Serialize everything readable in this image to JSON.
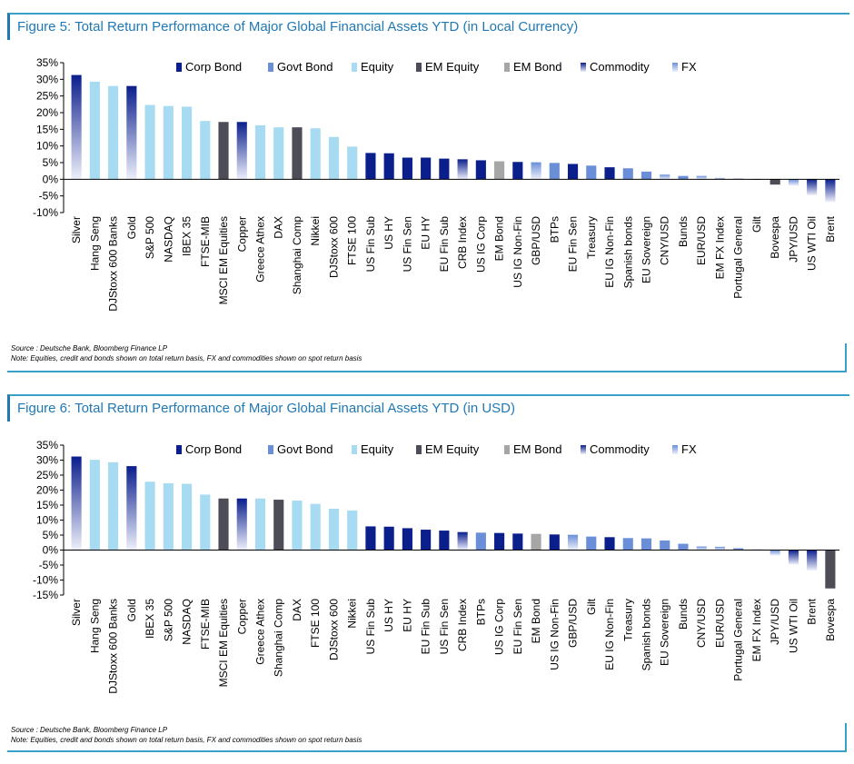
{
  "legend_items": [
    {
      "name": "Corp Bond",
      "color": "#0a1e8c",
      "fill": "solid"
    },
    {
      "name": "Govt Bond",
      "color": "#6a8fd8",
      "fill": "solid"
    },
    {
      "name": "Equity",
      "color": "#a6dbf2",
      "fill": "solid"
    },
    {
      "name": "EM Equity",
      "color": "#4d4d57",
      "fill": "solid"
    },
    {
      "name": "EM Bond",
      "color": "#a6a6a6",
      "fill": "solid"
    },
    {
      "name": "Commodity",
      "color": "#0a1e8c",
      "fill": "gradient"
    },
    {
      "name": "FX",
      "color": "#6a8fd8",
      "fill": "gradient"
    }
  ],
  "chart_data": [
    {
      "type": "bar",
      "title": "Figure 5: Total Return Performance of Major Global Financial Assets YTD (in Local Currency)",
      "source": "Source : Deutsche Bank, Bloomberg Finance LP",
      "note": "Note: Equities, credit and bonds shown on total return basis, FX and commodities shown on spot return basis",
      "ylim": [
        -10,
        35
      ],
      "yticks": [
        -10,
        -5,
        0,
        5,
        10,
        15,
        20,
        25,
        30,
        35
      ],
      "tick_suffix": "%",
      "legend_position": "top-right",
      "categories": [
        "Silver",
        "Hang Seng",
        "DJStoxx 600 Banks",
        "Gold",
        "S&P 500",
        "NASDAQ",
        "IBEX 35",
        "FTSE-MIB",
        "MSCI EM Equities",
        "Copper",
        "Greece Athex",
        "DAX",
        "Shanghai Comp",
        "Nikkei",
        "DJStoxx 600",
        "FTSE 100",
        "US Fin Sub",
        "US HY",
        "US Fin Sen",
        "EU HY",
        "EU Fin Sub",
        "CRB Index",
        "US IG Corp",
        "EM Bond",
        "US IG Non-Fin",
        "GBP/USD",
        "BTPs",
        "EU Fin Sen",
        "Treasury",
        "EU IG Non-Fin",
        "Spanish bonds",
        "EU Sovereign",
        "CNY/USD",
        "Bunds",
        "EUR/USD",
        "EM FX Index",
        "Portugal General",
        "Gilt",
        "Bovespa",
        "JPY/USD",
        "US WTI Oil",
        "Brent"
      ],
      "values": [
        31.3,
        29.3,
        28.0,
        28.0,
        22.3,
        22.0,
        21.8,
        17.5,
        17.2,
        17.2,
        16.2,
        15.6,
        15.6,
        15.3,
        12.7,
        9.8,
        7.9,
        7.8,
        6.5,
        6.5,
        6.2,
        6.0,
        5.7,
        5.4,
        5.2,
        5.1,
        4.9,
        4.6,
        4.1,
        3.6,
        3.3,
        2.3,
        1.4,
        1.0,
        1.0,
        0.4,
        0.2,
        -0.2,
        -1.6,
        -1.9,
        -4.8,
        -6.8
      ],
      "asset_classes": [
        "Commodity",
        "Equity",
        "Equity",
        "Commodity",
        "Equity",
        "Equity",
        "Equity",
        "Equity",
        "EM Equity",
        "Commodity",
        "Equity",
        "Equity",
        "EM Equity",
        "Equity",
        "Equity",
        "Equity",
        "Corp Bond",
        "Corp Bond",
        "Corp Bond",
        "Corp Bond",
        "Corp Bond",
        "Commodity",
        "Corp Bond",
        "EM Bond",
        "Corp Bond",
        "FX",
        "Govt Bond",
        "Corp Bond",
        "Govt Bond",
        "Corp Bond",
        "Govt Bond",
        "Govt Bond",
        "FX",
        "Govt Bond",
        "FX",
        "FX",
        "Govt Bond",
        "Govt Bond",
        "EM Equity",
        "FX",
        "Commodity",
        "Commodity"
      ]
    },
    {
      "type": "bar",
      "title": "Figure 6: Total Return Performance of Major Global Financial Assets YTD (in USD)",
      "source": "Source : Deutsche Bank, Bloomberg Finance LP",
      "note": "Note: Equities, credit and bonds shown on total return basis, FX and commodities shown on spot return basis",
      "ylim": [
        -15,
        35
      ],
      "yticks": [
        -15,
        -10,
        -5,
        0,
        5,
        10,
        15,
        20,
        25,
        30,
        35
      ],
      "tick_suffix": "%",
      "legend_position": "top-right",
      "categories": [
        "Silver",
        "Hang Seng",
        "DJStoxx 600 Banks",
        "Gold",
        "IBEX 35",
        "S&P 500",
        "NASDAQ",
        "FTSE-MIB",
        "MSCI EM Equities",
        "Copper",
        "Greece Athex",
        "Shanghai Comp",
        "DAX",
        "FTSE 100",
        "DJStoxx 600",
        "Nikkei",
        "US Fin Sub",
        "US HY",
        "EU HY",
        "EU Fin Sub",
        "US Fin Sen",
        "CRB Index",
        "BTPs",
        "US IG Corp",
        "EU Fin Sen",
        "EM Bond",
        "US IG Non-Fin",
        "GBP/USD",
        "Gilt",
        "EU IG Non-Fin",
        "Treasury",
        "Spanish bonds",
        "EU Sovereign",
        "Bunds",
        "CNY/USD",
        "EUR/USD",
        "Portugal General",
        "EM FX Index",
        "JPY/USD",
        "US WTI Oil",
        "Brent",
        "Bovespa"
      ],
      "values": [
        31.2,
        30.1,
        29.3,
        28.0,
        22.8,
        22.3,
        22.1,
        18.5,
        17.2,
        17.2,
        17.2,
        16.8,
        16.5,
        15.4,
        13.8,
        13.2,
        7.9,
        7.8,
        7.3,
        6.8,
        6.5,
        6.0,
        5.8,
        5.7,
        5.5,
        5.4,
        5.2,
        5.1,
        4.5,
        4.3,
        4.0,
        3.9,
        3.2,
        2.1,
        1.2,
        1.1,
        0.6,
        0.2,
        -1.8,
        -4.8,
        -6.8,
        -12.8
      ],
      "asset_classes": [
        "Commodity",
        "Equity",
        "Equity",
        "Commodity",
        "Equity",
        "Equity",
        "Equity",
        "Equity",
        "EM Equity",
        "Commodity",
        "Equity",
        "EM Equity",
        "Equity",
        "Equity",
        "Equity",
        "Equity",
        "Corp Bond",
        "Corp Bond",
        "Corp Bond",
        "Corp Bond",
        "Corp Bond",
        "Commodity",
        "Govt Bond",
        "Corp Bond",
        "Corp Bond",
        "EM Bond",
        "Corp Bond",
        "FX",
        "Govt Bond",
        "Corp Bond",
        "Govt Bond",
        "Govt Bond",
        "Govt Bond",
        "Govt Bond",
        "FX",
        "FX",
        "Govt Bond",
        "FX",
        "FX",
        "Commodity",
        "Commodity",
        "EM Equity"
      ]
    }
  ]
}
